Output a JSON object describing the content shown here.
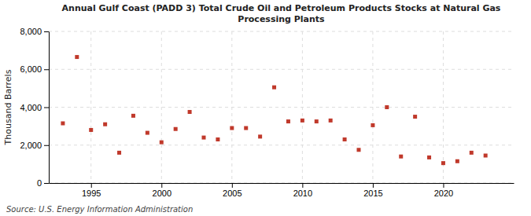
{
  "chart_data": {
    "type": "scatter",
    "title": "Annual Gulf Coast (PADD 3) Total Crude Oil and Petroleum Products Stocks at Natural Gas\nProcessing Plants",
    "y_label": "Thousand Barrels",
    "annotation": "Source: U.S. Energy Information Administration",
    "x": [
      1993,
      1994,
      1995,
      1996,
      1997,
      1998,
      1999,
      2000,
      2001,
      2002,
      2003,
      2004,
      2005,
      2006,
      2007,
      2008,
      2009,
      2010,
      2011,
      2012,
      2013,
      2014,
      2015,
      2016,
      2017,
      2018,
      2019,
      2020,
      2021,
      2022,
      2023
    ],
    "values": [
      3150,
      6650,
      2800,
      3100,
      1600,
      3550,
      2650,
      2150,
      2850,
      3750,
      2400,
      2300,
      2900,
      2900,
      2450,
      5050,
      3250,
      3300,
      3250,
      3300,
      2300,
      1750,
      3050,
      4000,
      1400,
      3500,
      1350,
      1050,
      1150,
      1600,
      1450
    ],
    "color": "#c0392b",
    "marker": "square",
    "xlim": [
      1992,
      2025
    ],
    "ylim": [
      0,
      8000
    ],
    "xticks": [
      1995,
      2000,
      2005,
      2010,
      2015,
      2020
    ],
    "yticks": [
      0,
      {
        "value": 2000,
        "label": "2,000"
      },
      {
        "value": 4000,
        "label": "4,000"
      },
      {
        "value": 6000,
        "label": "6,000"
      },
      {
        "value": 8000,
        "label": "8,000"
      }
    ],
    "grid": true
  }
}
